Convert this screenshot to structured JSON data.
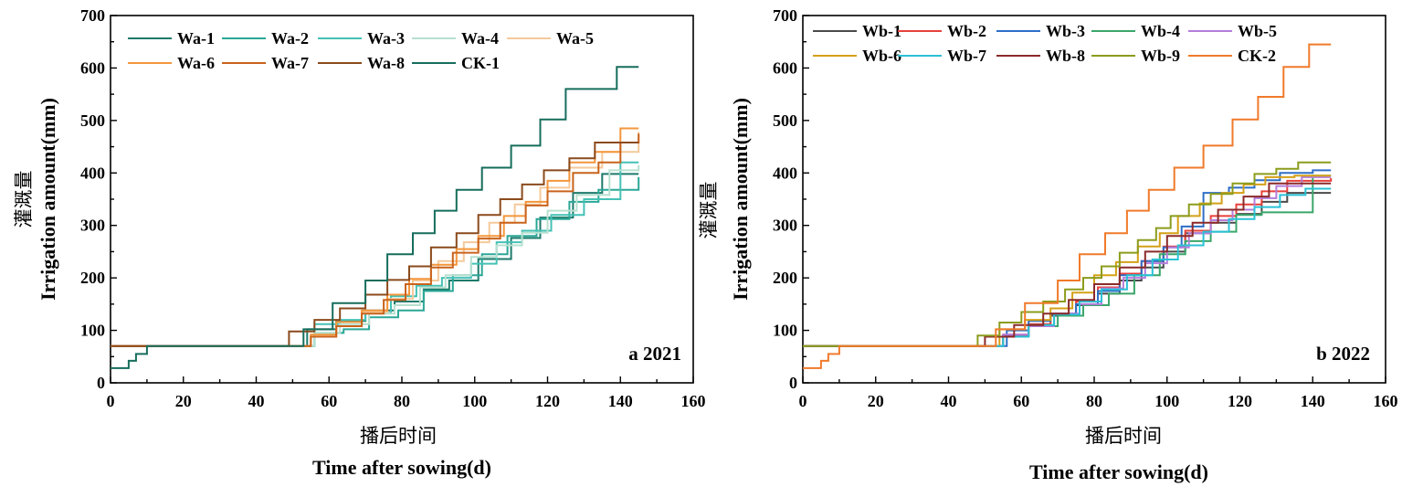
{
  "chart_data": [
    {
      "type": "line",
      "panel_label": "a 2021",
      "xlabel_cn": "播后时间",
      "xlabel": "Time after sowing(d)",
      "ylabel_cn": "灌溉量",
      "ylabel": "Irrigation amount(mm)",
      "xlim": [
        0,
        160
      ],
      "ylim": [
        0,
        700
      ],
      "xticks": [
        0,
        20,
        40,
        60,
        80,
        100,
        120,
        140,
        160
      ],
      "yticks": [
        0,
        100,
        200,
        300,
        400,
        500,
        600,
        700
      ],
      "xtick_labels": [
        "0",
        "20",
        "40",
        "60",
        "80",
        "100",
        "120",
        "140",
        "160"
      ],
      "ytick_labels": [
        "0",
        "100",
        "200",
        "300",
        "400",
        "500",
        "600",
        "700"
      ],
      "legend_position": "top-left",
      "series": [
        {
          "name": "Wa-1",
          "color": "#1e7a6b",
          "x": [
            0,
            41,
            54,
            62,
            70,
            78,
            86,
            93,
            101,
            110,
            118,
            127,
            135,
            145
          ],
          "y": [
            70,
            70,
            102,
            118,
            138,
            155,
            178,
            195,
            236,
            276,
            315,
            362,
            398,
            398
          ]
        },
        {
          "name": "Wa-2",
          "color": "#2aa797",
          "x": [
            0,
            48,
            56,
            64,
            71,
            79,
            86,
            94,
            102,
            109,
            117,
            126,
            134,
            145
          ],
          "y": [
            70,
            70,
            95,
            102,
            125,
            138,
            175,
            205,
            245,
            280,
            312,
            345,
            368,
            392
          ]
        },
        {
          "name": "Wa-3",
          "color": "#45c1b5",
          "x": [
            0,
            48,
            56,
            63,
            70,
            77,
            84,
            91,
            99,
            106,
            113,
            121,
            130,
            140,
            145
          ],
          "y": [
            70,
            70,
            112,
            120,
            133,
            165,
            185,
            200,
            227,
            268,
            290,
            320,
            350,
            420,
            420
          ]
        },
        {
          "name": "Wa-4",
          "color": "#b8e0d0",
          "x": [
            0,
            48,
            56,
            63,
            71,
            78,
            85,
            92,
            99,
            106,
            113,
            120,
            128,
            137,
            145
          ],
          "y": [
            70,
            70,
            95,
            112,
            132,
            148,
            182,
            205,
            240,
            262,
            286,
            328,
            358,
            405,
            415
          ]
        },
        {
          "name": "Wa-5",
          "color": "#f5c99a",
          "x": [
            0,
            48,
            55,
            62,
            69,
            76,
            83,
            90,
            97,
            104,
            111,
            118,
            126,
            135,
            145
          ],
          "y": [
            70,
            70,
            88,
            108,
            135,
            160,
            195,
            232,
            268,
            305,
            340,
            372,
            410,
            440,
            478
          ]
        },
        {
          "name": "Wa-6",
          "color": "#f4963c",
          "x": [
            0,
            48,
            55,
            62,
            69,
            76,
            82,
            88,
            95,
            101,
            108,
            114,
            120,
            126,
            133,
            140,
            145
          ],
          "y": [
            70,
            70,
            92,
            116,
            138,
            168,
            198,
            225,
            255,
            280,
            318,
            345,
            385,
            420,
            440,
            485,
            485
          ]
        },
        {
          "name": "Wa-7",
          "color": "#c9631c",
          "x": [
            0,
            47,
            55,
            62,
            69,
            75,
            81,
            88,
            94,
            101,
            107,
            114,
            120,
            127,
            134,
            140,
            145
          ],
          "y": [
            70,
            70,
            88,
            108,
            132,
            158,
            188,
            220,
            248,
            275,
            305,
            338,
            365,
            400,
            420,
            458,
            475
          ]
        },
        {
          "name": "Wa-8",
          "color": "#8b4a1c",
          "x": [
            0,
            41,
            49,
            56,
            63,
            70,
            76,
            82,
            88,
            95,
            101,
            107,
            113,
            119,
            126,
            133,
            145
          ],
          "y": [
            70,
            70,
            98,
            120,
            142,
            168,
            196,
            222,
            258,
            285,
            320,
            350,
            378,
            405,
            428,
            458,
            458
          ]
        },
        {
          "name": "CK-1",
          "color": "#166d5c",
          "x": [
            0,
            2,
            5,
            7,
            10,
            41,
            53,
            61,
            70,
            76,
            83,
            89,
            95,
            102,
            110,
            118,
            125,
            132,
            139,
            145
          ],
          "y": [
            28,
            28,
            42,
            55,
            70,
            70,
            102,
            152,
            195,
            245,
            285,
            328,
            368,
            410,
            452,
            502,
            560,
            560,
            602,
            602
          ]
        }
      ]
    },
    {
      "type": "line",
      "panel_label": "b 2022",
      "xlabel_cn": "播后时间",
      "xlabel": "Time after sowing(d)",
      "ylabel_cn": "灌溉量",
      "ylabel": "Irrigation amount(mm)",
      "xlim": [
        0,
        160
      ],
      "ylim": [
        0,
        700
      ],
      "xticks": [
        0,
        20,
        40,
        60,
        80,
        100,
        120,
        140,
        160
      ],
      "yticks": [
        0,
        100,
        200,
        300,
        400,
        500,
        600,
        700
      ],
      "xtick_labels": [
        "0",
        "20",
        "40",
        "60",
        "80",
        "100",
        "120",
        "140",
        "160"
      ],
      "ytick_labels": [
        "0",
        "100",
        "200",
        "300",
        "400",
        "500",
        "600",
        "700"
      ],
      "legend_position": "top-left",
      "series": [
        {
          "name": "Wb-1",
          "color": "#4a4a4a",
          "x": [
            0,
            48,
            55,
            62,
            68,
            75,
            81,
            87,
            93,
            99,
            105,
            112,
            119,
            126,
            133,
            145
          ],
          "y": [
            70,
            70,
            90,
            110,
            128,
            148,
            170,
            195,
            220,
            250,
            285,
            305,
            322,
            345,
            362,
            362
          ]
        },
        {
          "name": "Wb-2",
          "color": "#e8413c",
          "x": [
            0,
            48,
            55,
            62,
            68,
            75,
            81,
            87,
            93,
            99,
            105,
            112,
            119,
            126,
            133,
            145
          ],
          "y": [
            70,
            70,
            92,
            112,
            132,
            155,
            182,
            208,
            232,
            260,
            290,
            318,
            340,
            365,
            385,
            390
          ]
        },
        {
          "name": "Wb-3",
          "color": "#2e6fc7",
          "x": [
            0,
            48,
            56,
            62,
            68,
            75,
            81,
            87,
            93,
            99,
            104,
            110,
            117,
            124,
            131,
            140,
            145
          ],
          "y": [
            70,
            70,
            100,
            118,
            132,
            150,
            175,
            205,
            232,
            258,
            298,
            362,
            372,
            386,
            400,
            405,
            405
          ]
        },
        {
          "name": "Wb-4",
          "color": "#3aa66a",
          "x": [
            0,
            48,
            55,
            62,
            70,
            77,
            84,
            91,
            98,
            105,
            112,
            119,
            126,
            133,
            140,
            145
          ],
          "y": [
            70,
            70,
            88,
            108,
            128,
            148,
            170,
            205,
            245,
            270,
            288,
            320,
            325,
            325,
            395,
            395
          ]
        },
        {
          "name": "Wb-5",
          "color": "#b57ddc",
          "x": [
            0,
            48,
            55,
            62,
            69,
            76,
            82,
            88,
            94,
            100,
            106,
            112,
            118,
            124,
            130,
            137,
            145
          ],
          "y": [
            70,
            70,
            92,
            108,
            132,
            150,
            180,
            200,
            228,
            258,
            285,
            310,
            330,
            352,
            375,
            392,
            392
          ]
        },
        {
          "name": "Wb-6",
          "color": "#d4a017",
          "x": [
            0,
            47,
            54,
            61,
            68,
            74,
            80,
            86,
            92,
            98,
            103,
            109,
            115,
            121,
            127,
            135,
            145
          ],
          "y": [
            70,
            70,
            102,
            120,
            142,
            172,
            205,
            230,
            260,
            285,
            318,
            342,
            362,
            378,
            392,
            395,
            395
          ]
        },
        {
          "name": "Wb-7",
          "color": "#2bc1d6",
          "x": [
            0,
            48,
            55,
            62,
            69,
            76,
            82,
            89,
            96,
            103,
            110,
            117,
            124,
            131,
            138,
            145
          ],
          "y": [
            70,
            70,
            88,
            110,
            130,
            155,
            178,
            205,
            235,
            262,
            288,
            312,
            335,
            358,
            370,
            370
          ]
        },
        {
          "name": "Wb-8",
          "color": "#8b2a2a",
          "x": [
            0,
            41,
            50,
            58,
            66,
            73,
            80,
            87,
            94,
            100,
            107,
            114,
            121,
            128,
            145
          ],
          "y": [
            70,
            70,
            88,
            110,
            132,
            158,
            188,
            220,
            250,
            280,
            305,
            330,
            355,
            380,
            380
          ]
        },
        {
          "name": "Wb-9",
          "color": "#8c9c1c",
          "x": [
            0,
            41,
            48,
            54,
            60,
            66,
            72,
            77,
            82,
            87,
            92,
            97,
            101,
            106,
            112,
            118,
            124,
            130,
            136,
            145
          ],
          "y": [
            70,
            70,
            90,
            115,
            135,
            155,
            178,
            200,
            222,
            248,
            272,
            295,
            318,
            340,
            360,
            380,
            398,
            408,
            420,
            420
          ]
        },
        {
          "name": "CK-2",
          "color": "#f07a2a",
          "x": [
            0,
            2,
            5,
            7,
            10,
            41,
            53,
            61,
            70,
            76,
            83,
            89,
            95,
            102,
            110,
            118,
            125,
            132,
            139,
            145
          ],
          "y": [
            28,
            28,
            42,
            55,
            70,
            70,
            102,
            152,
            195,
            245,
            285,
            328,
            368,
            410,
            452,
            502,
            545,
            602,
            645,
            645
          ]
        }
      ]
    }
  ]
}
